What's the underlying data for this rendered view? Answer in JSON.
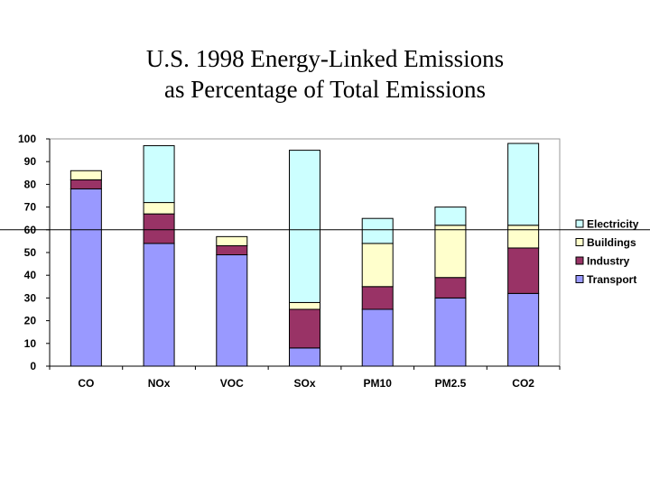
{
  "slide": {
    "title_line1": "U.S. 1998 Energy-Linked Emissions",
    "title_line2": "as Percentage of Total Emissions"
  },
  "chart_data": {
    "type": "bar",
    "stacked": true,
    "title": "U.S. 1998 Energy-Linked Emissions as Percentage of Total Emissions",
    "xlabel": "",
    "ylabel": "",
    "ylim": [
      0,
      100
    ],
    "yticks": [
      0,
      10,
      20,
      30,
      40,
      50,
      60,
      70,
      80,
      90,
      100
    ],
    "reference_line": 60,
    "categories": [
      "CO",
      "NOx",
      "VOC",
      "SOx",
      "PM10",
      "PM2.5",
      "CO2"
    ],
    "series": [
      {
        "name": "Transport",
        "color": "#9999ff",
        "values": [
          78,
          54,
          49,
          8,
          25,
          30,
          32
        ]
      },
      {
        "name": "Industry",
        "color": "#993366",
        "values": [
          4,
          13,
          4,
          17,
          10,
          9,
          20
        ]
      },
      {
        "name": "Buildings",
        "color": "#ffffcc",
        "values": [
          4,
          5,
          4,
          3,
          19,
          23,
          10
        ]
      },
      {
        "name": "Electricity",
        "color": "#ccffff",
        "values": [
          0,
          25,
          0,
          67,
          11,
          8,
          36
        ]
      }
    ],
    "legend": {
      "placement": "right",
      "order": [
        "Electricity",
        "Buildings",
        "Industry",
        "Transport"
      ]
    }
  }
}
